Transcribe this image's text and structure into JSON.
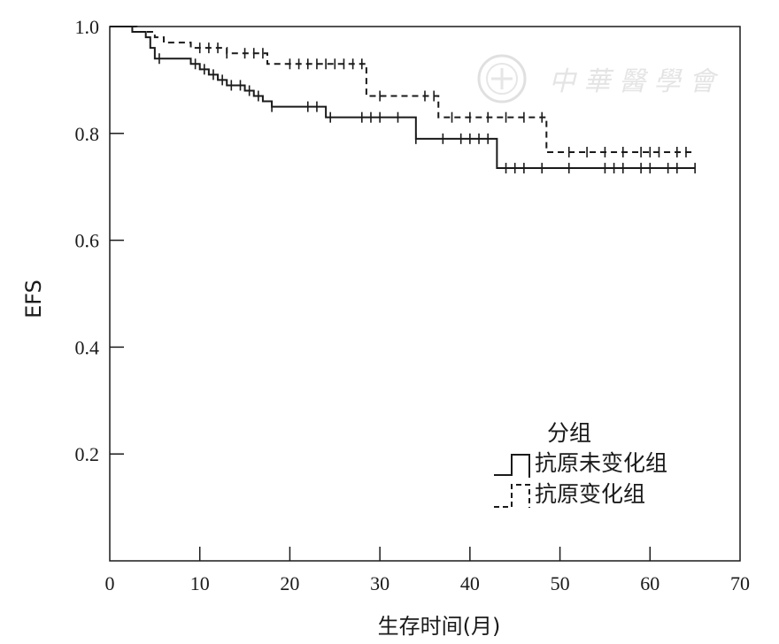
{
  "chart_data": {
    "type": "line",
    "subtype": "kaplan-meier step",
    "xlabel": "生存时间(月)",
    "ylabel": "EFS",
    "xlim": [
      0,
      70
    ],
    "ylim": [
      0,
      1.0
    ],
    "xticks": [
      0,
      10,
      20,
      30,
      40,
      50,
      60,
      70
    ],
    "yticks": [
      0.2,
      0.4,
      0.6,
      0.8,
      1.0
    ],
    "xtick_labels": [
      "0",
      "10",
      "20",
      "30",
      "40",
      "50",
      "60",
      "70"
    ],
    "ytick_labels": [
      "0.2",
      "0.4",
      "0.6",
      "0.8",
      "1.0"
    ],
    "grid": false,
    "legend": {
      "title": "分组",
      "placement": "bottom-right",
      "entries": [
        "抗原未变化组",
        "抗原变化组"
      ]
    },
    "series": [
      {
        "name": "抗原未变化组",
        "line_style": "solid",
        "color": "#1a1a1a",
        "steps": [
          [
            0,
            1.0
          ],
          [
            2.5,
            0.99
          ],
          [
            4,
            0.98
          ],
          [
            4.5,
            0.96
          ],
          [
            5,
            0.94
          ],
          [
            9,
            0.93
          ],
          [
            10,
            0.92
          ],
          [
            11,
            0.91
          ],
          [
            12,
            0.9
          ],
          [
            13,
            0.89
          ],
          [
            15,
            0.88
          ],
          [
            16,
            0.87
          ],
          [
            17,
            0.86
          ],
          [
            18,
            0.85
          ],
          [
            24,
            0.83
          ],
          [
            34,
            0.79
          ],
          [
            43,
            0.735
          ],
          [
            65,
            0.735
          ]
        ],
        "censored": [
          5.5,
          9.5,
          10.5,
          11.5,
          12.5,
          13.5,
          14.5,
          15.5,
          16.5,
          18,
          22,
          23,
          24.5,
          28,
          29,
          30,
          32,
          34,
          37,
          39,
          40,
          41,
          42,
          44,
          45,
          46,
          48,
          51,
          55,
          56,
          57,
          59,
          60,
          62,
          63,
          65
        ]
      },
      {
        "name": "抗原变化组",
        "line_style": "dashed",
        "color": "#1a1a1a",
        "steps": [
          [
            0,
            1.0
          ],
          [
            3,
            0.99
          ],
          [
            5,
            0.98
          ],
          [
            6,
            0.97
          ],
          [
            9,
            0.96
          ],
          [
            13,
            0.95
          ],
          [
            17.5,
            0.93
          ],
          [
            28.5,
            0.87
          ],
          [
            36.5,
            0.83
          ],
          [
            48.5,
            0.765
          ],
          [
            65,
            0.765
          ]
        ],
        "censored": [
          10,
          11,
          12,
          13,
          15,
          16,
          17,
          20,
          21,
          22,
          23,
          24,
          25,
          26,
          27,
          28,
          30,
          35,
          36,
          38,
          40,
          42,
          44,
          46,
          48,
          51,
          53,
          55,
          57,
          59,
          60,
          61,
          63,
          64
        ]
      }
    ]
  }
}
